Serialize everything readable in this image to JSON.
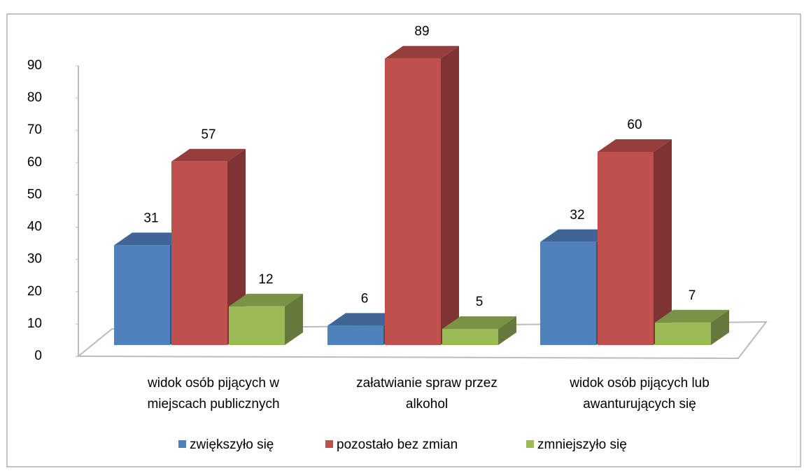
{
  "chart_data": {
    "type": "bar3d",
    "categories": [
      [
        "widok osób pijących w",
        "miejscach publicznych"
      ],
      [
        "załatwianie spraw przez",
        "alkohol"
      ],
      [
        "widok osób pijących lub",
        "awanturujących się"
      ]
    ],
    "series": [
      {
        "name": "zwiększyło się",
        "color": "#4f81bd",
        "values": [
          31,
          6,
          32
        ]
      },
      {
        "name": "pozostało bez zmian",
        "color": "#c0504d",
        "values": [
          57,
          89,
          60
        ]
      },
      {
        "name": "zmniejszyło się",
        "color": "#9bbb59",
        "values": [
          12,
          5,
          7
        ]
      }
    ],
    "ylim": [
      0,
      90
    ],
    "yticks": [
      0,
      10,
      20,
      30,
      40,
      50,
      60,
      70,
      80,
      90
    ]
  }
}
